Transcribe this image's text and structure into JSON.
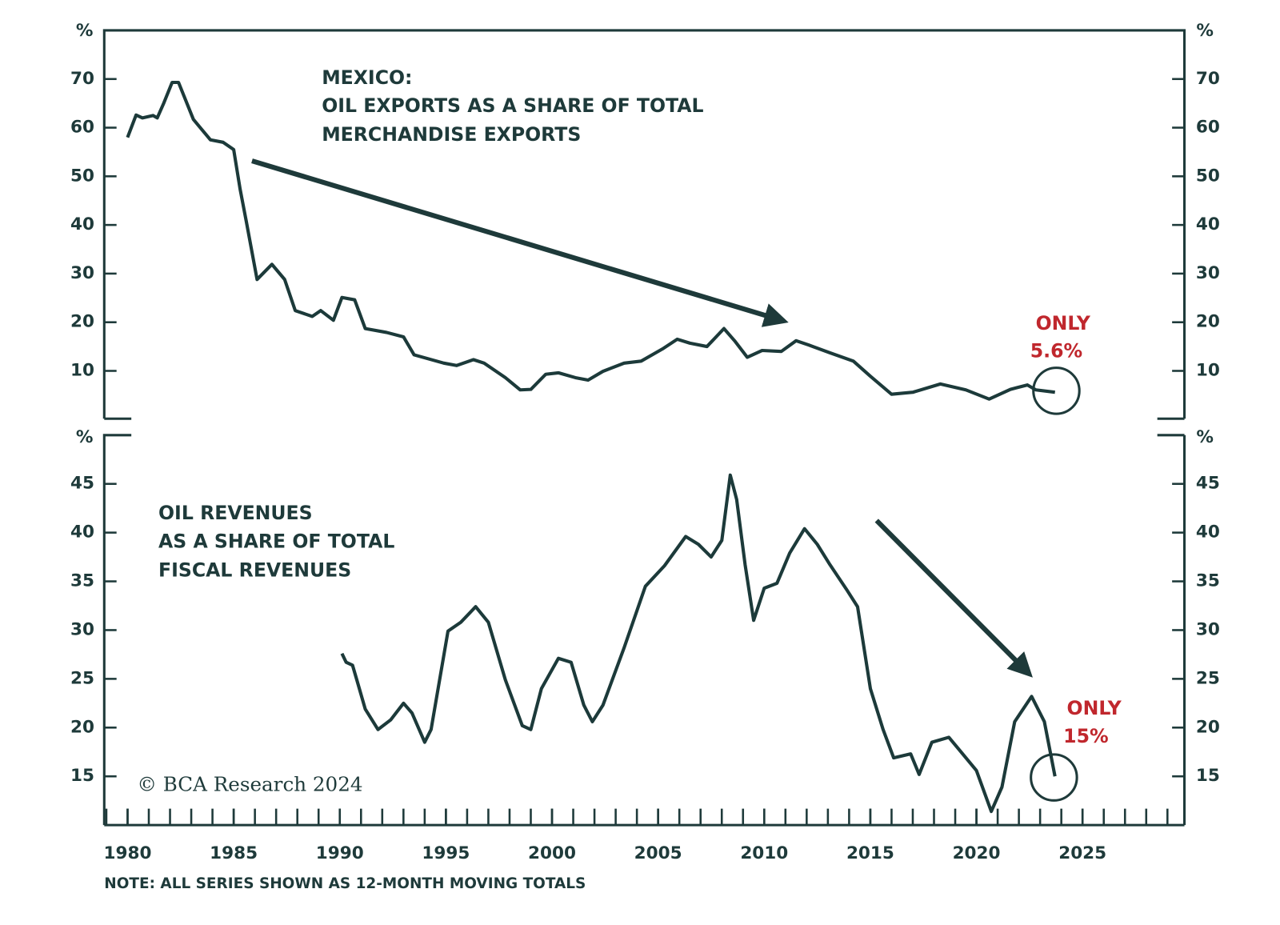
{
  "chart_data": [
    {
      "type": "line",
      "color": "#1c3a3a",
      "title": [
        "MEXICO:",
        "OIL EXPORTS AS A SHARE OF TOTAL",
        "MERCHANDISE EXPORTS"
      ],
      "ylabel": "%",
      "annotations": [
        "ONLY",
        "5.6%"
      ],
      "xlim": [
        1978.9,
        2029.8
      ],
      "ylim": [
        0,
        80
      ],
      "yticks": [
        10,
        20,
        30,
        40,
        50,
        60,
        70
      ],
      "x": [
        1980.0,
        1980.4,
        1980.7,
        1981.2,
        1981.4,
        1981.7,
        1982.1,
        1982.4,
        1983.1,
        1983.9,
        1984.5,
        1985.0,
        1985.3,
        1985.6,
        1986.1,
        1986.8,
        1987.4,
        1987.9,
        1988.7,
        1989.1,
        1989.7,
        1990.1,
        1990.7,
        1991.2,
        1992.2,
        1993.0,
        1993.5,
        1994.9,
        1995.5,
        1996.3,
        1996.8,
        1997.8,
        1998.5,
        1999.0,
        1999.7,
        2000.3,
        2001.1,
        2001.7,
        2002.4,
        2003.4,
        2004.2,
        2005.2,
        2005.9,
        2006.5,
        2007.3,
        2008.1,
        2008.6,
        2009.2,
        2009.9,
        2010.8,
        2011.5,
        2012.1,
        2013.1,
        2014.2,
        2015.0,
        2016.0,
        2017.0,
        2018.3,
        2019.5,
        2020.6,
        2021.6,
        2022.4,
        2022.8,
        2023.7
      ],
      "values": [
        58,
        62.6,
        62,
        62.5,
        62,
        65,
        69.3,
        69.3,
        61.7,
        57.5,
        57,
        55.5,
        47.4,
        40.6,
        28.8,
        31.9,
        28.8,
        22.4,
        21.2,
        22.4,
        20.4,
        25.1,
        24.6,
        18.7,
        17.9,
        17,
        13.3,
        11.6,
        11.1,
        12.3,
        11.6,
        8.6,
        6.1,
        6.2,
        9.3,
        9.6,
        8.6,
        8.1,
        9.9,
        11.6,
        12,
        14.5,
        16.5,
        15.7,
        15,
        18.7,
        16.2,
        12.8,
        14.2,
        14,
        16.2,
        15.3,
        13.7,
        12,
        8.9,
        5.2,
        5.6,
        7.3,
        6.1,
        4.2,
        6.2,
        7.1,
        6.1,
        5.6
      ]
    },
    {
      "type": "line",
      "color": "#1c3a3a",
      "title": [
        "OIL REVENUES",
        "AS A SHARE OF TOTAL",
        "FISCAL REVENUES"
      ],
      "ylabel": "%",
      "annotations": [
        "ONLY",
        "15%"
      ],
      "xlim": [
        1978.9,
        2029.8
      ],
      "xticks": [
        1980,
        1985,
        1990,
        1995,
        2000,
        2005,
        2010,
        2015,
        2020,
        2025
      ],
      "ylim": [
        10,
        50
      ],
      "yticks": [
        15,
        20,
        25,
        30,
        35,
        40,
        45
      ],
      "x": [
        1990.1,
        1990.3,
        1990.6,
        1990.8,
        1991.2,
        1991.8,
        1992.4,
        1993.0,
        1993.4,
        1994.0,
        1994.3,
        1995.1,
        1995.7,
        1996.4,
        1997.0,
        1997.8,
        1998.6,
        1999.0,
        1999.5,
        2000.3,
        2000.9,
        2001.5,
        2001.9,
        2002.4,
        2003.4,
        2004.4,
        2005.3,
        2006.3,
        2006.9,
        2007.5,
        2008.0,
        2008.4,
        2008.7,
        2009.1,
        2009.5,
        2010.0,
        2010.6,
        2011.2,
        2011.9,
        2012.5,
        2013.1,
        2013.9,
        2014.4,
        2015.0,
        2015.6,
        2016.1,
        2016.9,
        2017.3,
        2017.9,
        2018.7,
        2019.2,
        2020.0,
        2020.7,
        2021.2,
        2021.8,
        2022.6,
        2023.2,
        2023.7
      ],
      "values": [
        27.6,
        26.7,
        26.4,
        24.9,
        21.9,
        19.8,
        20.8,
        22.5,
        21.5,
        18.5,
        19.8,
        29.9,
        30.8,
        32.4,
        30.8,
        24.9,
        20.2,
        19.8,
        24,
        27.1,
        26.7,
        22.3,
        20.6,
        22.3,
        28.2,
        34.5,
        36.6,
        39.6,
        38.8,
        37.5,
        39.2,
        45.9,
        43.4,
        36.7,
        31,
        34.3,
        34.8,
        37.9,
        40.4,
        38.8,
        36.7,
        34.1,
        32.4,
        24,
        19.8,
        16.9,
        17.3,
        15.2,
        18.5,
        19,
        17.7,
        15.6,
        11.4,
        13.9,
        20.6,
        23.2,
        20.6,
        15
      ]
    }
  ],
  "source": "© BCA Research 2024",
  "note": "NOTE: ALL SERIES SHOWN AS 12-MONTH MOVING TOTALS"
}
